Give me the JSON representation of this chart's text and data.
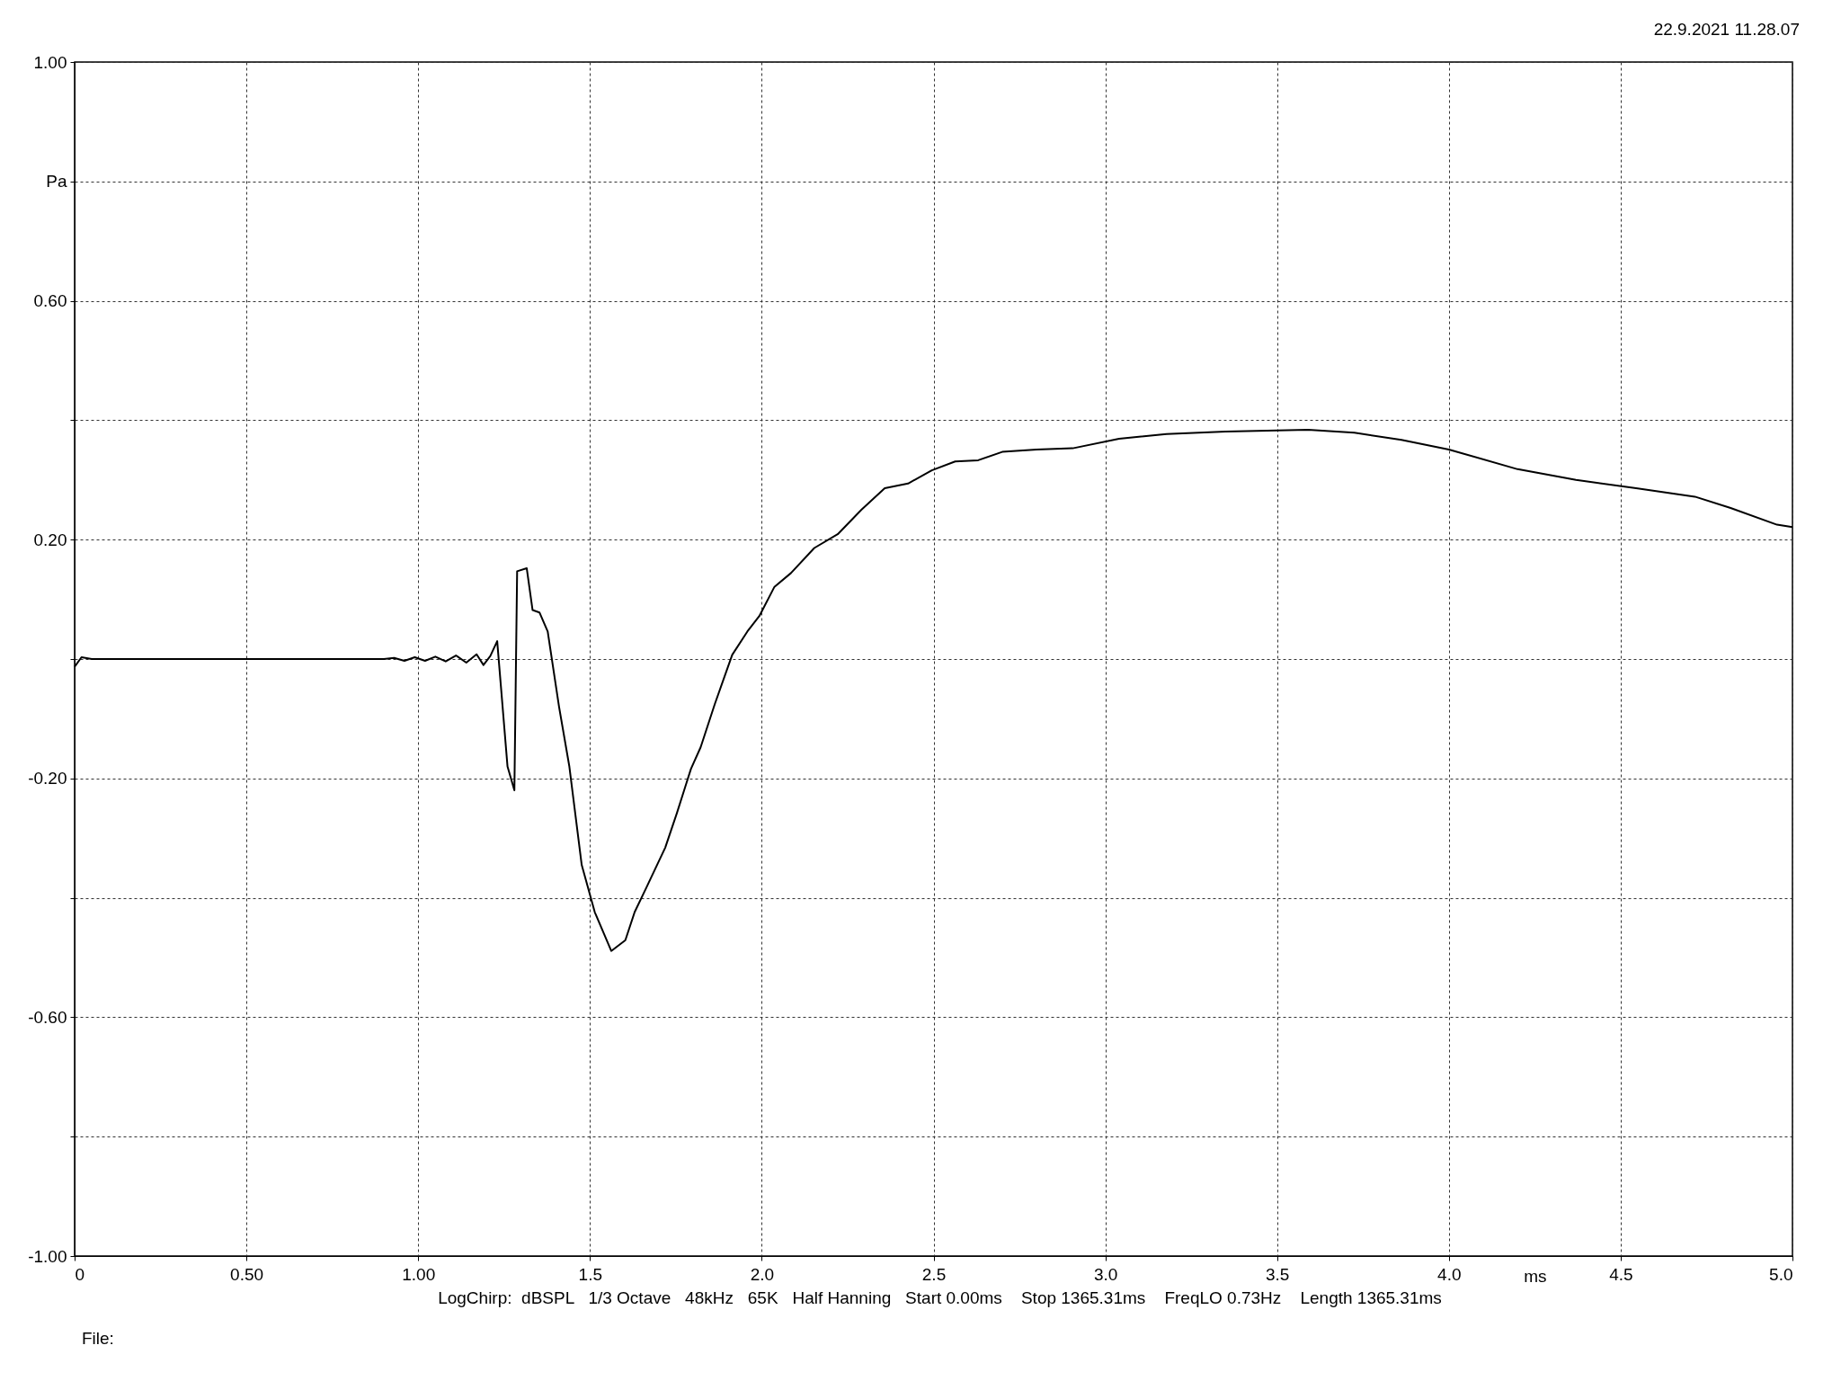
{
  "chart_data": {
    "type": "line",
    "xlabel": "ms",
    "ylabel": null,
    "annotations": [
      "22.9.2021 11.28.07",
      "LogChirp:  dBSPL   1/3 Octave   48kHz   65K   Half Hanning   Start 0.00ms    Stop 1365.31ms    FreqLO 0.73Hz    Length 1365.31ms",
      "File:"
    ],
    "x": [
      0,
      0.02,
      0.05,
      0.5,
      0.9,
      0.93,
      0.96,
      0.99,
      1.02,
      1.05,
      1.08,
      1.11,
      1.14,
      1.17,
      1.19,
      1.21,
      1.23,
      1.26,
      1.28,
      1.288,
      1.316,
      1.333,
      1.353,
      1.377,
      1.41,
      1.44,
      1.476,
      1.514,
      1.562,
      1.603,
      1.63,
      1.664,
      1.719,
      1.753,
      1.794,
      1.822,
      1.863,
      1.914,
      1.958,
      1.993,
      2.037,
      2.085,
      2.153,
      2.221,
      2.29,
      2.358,
      2.426,
      2.495,
      2.563,
      2.63,
      2.7,
      2.8,
      2.905,
      3.04,
      3.178,
      3.35,
      3.59,
      3.725,
      3.862,
      4.0,
      4.2,
      4.37,
      4.545,
      4.716,
      4.82,
      4.955,
      5.0
    ],
    "series": [
      {
        "color": "#000000",
        "values": [
          -0.013,
          0.003,
          0,
          0,
          0,
          0.002,
          -0.003,
          0.003,
          -0.003,
          0.004,
          -0.004,
          0.006,
          -0.006,
          0.008,
          -0.01,
          0.005,
          0.03,
          -0.18,
          -0.22,
          0.147,
          0.152,
          0.082,
          0.078,
          0.046,
          -0.08,
          -0.18,
          -0.345,
          -0.424,
          -0.489,
          -0.471,
          -0.424,
          -0.383,
          -0.316,
          -0.258,
          -0.184,
          -0.148,
          -0.076,
          0.007,
          0.046,
          0.072,
          0.121,
          0.144,
          0.186,
          0.209,
          0.25,
          0.286,
          0.294,
          0.316,
          0.331,
          0.333,
          0.347,
          0.351,
          0.353,
          0.369,
          0.377,
          0.381,
          0.384,
          0.379,
          0.367,
          0.351,
          0.318,
          0.3,
          0.286,
          0.272,
          0.253,
          0.225,
          0.221
        ]
      }
    ],
    "xlim": [
      0,
      5
    ],
    "ylim": [
      -1,
      1
    ],
    "xticks": [
      0,
      {
        "value": 0.5,
        "label": "0.50"
      },
      {
        "value": 1,
        "label": "1.00"
      },
      1.5,
      {
        "value": 2,
        "label": "2.0"
      },
      2.5,
      {
        "value": 3,
        "label": "3.0"
      },
      3.5,
      {
        "value": 4,
        "label": "4.0"
      },
      4.5,
      {
        "value": 5,
        "label": "5.0"
      }
    ],
    "yticks": [
      {
        "value": -1,
        "label": "-1.00"
      },
      {
        "value": -0.8,
        "label": null
      },
      {
        "value": -0.6,
        "label": "-0.60"
      },
      {
        "value": -0.4,
        "label": null
      },
      {
        "value": -0.2,
        "label": "-0.20"
      },
      {
        "value": 0,
        "label": null
      },
      {
        "value": 0.2,
        "label": "0.20"
      },
      {
        "value": 0.4,
        "label": null
      },
      {
        "value": 0.6,
        "label": "0.60"
      },
      {
        "value": 0.8,
        "label": "Pa"
      },
      {
        "value": 1,
        "label": "1.00"
      }
    ],
    "grid": true
  }
}
